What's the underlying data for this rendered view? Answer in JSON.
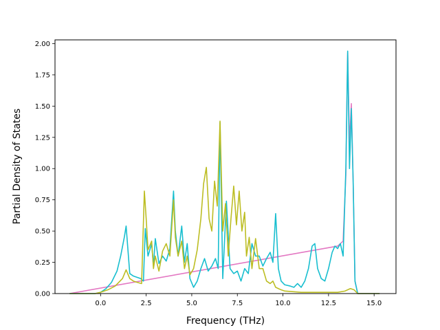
{
  "chart_data": {
    "type": "line",
    "title": "",
    "xlabel": "Frequency (THz)",
    "ylabel": "Partial Density of States",
    "xlim": [
      -2.5,
      16.2
    ],
    "ylim": [
      0.0,
      2.03
    ],
    "xticks": [
      0.0,
      2.5,
      5.0,
      7.5,
      10.0,
      12.5,
      15.0
    ],
    "xtick_labels": [
      "0.0",
      "2.5",
      "5.0",
      "7.5",
      "10.0",
      "12.5",
      "15.0"
    ],
    "yticks": [
      0.0,
      0.25,
      0.5,
      0.75,
      1.0,
      1.25,
      1.5,
      1.75,
      2.0
    ],
    "ytick_labels": [
      "0.00",
      "0.25",
      "0.50",
      "0.75",
      "1.00",
      "1.25",
      "1.50",
      "1.75",
      "2.00"
    ],
    "grid": false,
    "legend": "none",
    "series": [
      {
        "color": "#e377c2",
        "x": [
          -1.7,
          13.0,
          13.3,
          13.45,
          13.55,
          13.65,
          13.75,
          13.85,
          13.95,
          14.1,
          15.3
        ],
        "y": [
          0.0,
          0.38,
          0.42,
          0.95,
          1.93,
          1.2,
          1.52,
          0.9,
          0.1,
          0.0,
          0.0
        ]
      },
      {
        "color": "#17becf",
        "x": [
          -1.7,
          -0.3,
          0.0,
          0.3,
          0.6,
          0.9,
          1.1,
          1.3,
          1.4,
          1.6,
          1.8,
          2.0,
          2.2,
          2.35,
          2.45,
          2.6,
          2.8,
          2.9,
          3.0,
          3.2,
          3.4,
          3.6,
          3.8,
          4.0,
          4.1,
          4.25,
          4.45,
          4.6,
          4.75,
          4.9,
          5.1,
          5.3,
          5.5,
          5.7,
          5.9,
          6.1,
          6.3,
          6.45,
          6.55,
          6.7,
          6.9,
          7.1,
          7.3,
          7.5,
          7.7,
          7.9,
          8.1,
          8.3,
          8.5,
          8.7,
          8.9,
          9.1,
          9.3,
          9.45,
          9.6,
          9.75,
          9.9,
          10.1,
          10.4,
          10.6,
          10.8,
          11.0,
          11.2,
          11.4,
          11.6,
          11.75,
          11.9,
          12.1,
          12.3,
          12.5,
          12.7,
          12.85,
          13.0,
          13.15,
          13.3,
          13.45,
          13.55,
          13.65,
          13.75,
          13.85,
          13.95,
          14.1,
          14.5,
          15.3
        ],
        "y": [
          0.0,
          0.0,
          0.01,
          0.04,
          0.09,
          0.18,
          0.3,
          0.45,
          0.54,
          0.16,
          0.14,
          0.13,
          0.12,
          0.1,
          0.52,
          0.3,
          0.4,
          0.22,
          0.44,
          0.24,
          0.3,
          0.26,
          0.36,
          0.82,
          0.5,
          0.3,
          0.54,
          0.25,
          0.4,
          0.12,
          0.05,
          0.1,
          0.2,
          0.28,
          0.18,
          0.22,
          0.28,
          0.2,
          1.37,
          0.12,
          0.74,
          0.2,
          0.16,
          0.18,
          0.1,
          0.2,
          0.16,
          0.4,
          0.3,
          0.3,
          0.22,
          0.28,
          0.33,
          0.25,
          0.64,
          0.2,
          0.1,
          0.07,
          0.06,
          0.05,
          0.08,
          0.05,
          0.1,
          0.2,
          0.38,
          0.4,
          0.2,
          0.12,
          0.1,
          0.2,
          0.33,
          0.38,
          0.36,
          0.4,
          0.3,
          1.0,
          1.94,
          1.0,
          1.48,
          0.9,
          0.1,
          0.0,
          0.0,
          0.0
        ]
      },
      {
        "color": "#bcbd22",
        "x": [
          -1.7,
          -0.3,
          0.0,
          0.4,
          0.8,
          1.2,
          1.4,
          1.6,
          1.8,
          2.0,
          2.25,
          2.4,
          2.5,
          2.6,
          2.8,
          2.9,
          3.0,
          3.2,
          3.4,
          3.6,
          3.8,
          4.0,
          4.1,
          4.25,
          4.45,
          4.6,
          4.75,
          4.9,
          5.1,
          5.3,
          5.5,
          5.65,
          5.8,
          5.95,
          6.1,
          6.25,
          6.4,
          6.55,
          6.7,
          6.85,
          7.0,
          7.15,
          7.3,
          7.45,
          7.6,
          7.75,
          7.9,
          8.0,
          8.15,
          8.3,
          8.5,
          8.7,
          8.9,
          9.1,
          9.3,
          9.45,
          9.6,
          9.75,
          9.9,
          10.1,
          11.0,
          12.0,
          13.0,
          13.4,
          13.7,
          13.9,
          14.1,
          15.3
        ],
        "y": [
          0.0,
          0.0,
          0.01,
          0.03,
          0.06,
          0.12,
          0.19,
          0.12,
          0.1,
          0.09,
          0.08,
          0.82,
          0.6,
          0.35,
          0.42,
          0.2,
          0.3,
          0.18,
          0.34,
          0.4,
          0.3,
          0.75,
          0.45,
          0.3,
          0.42,
          0.2,
          0.3,
          0.15,
          0.2,
          0.35,
          0.6,
          0.88,
          1.01,
          0.6,
          0.5,
          0.9,
          0.7,
          1.38,
          0.5,
          0.72,
          0.3,
          0.6,
          0.86,
          0.55,
          0.82,
          0.5,
          0.65,
          0.3,
          0.45,
          0.2,
          0.44,
          0.2,
          0.2,
          0.1,
          0.08,
          0.1,
          0.05,
          0.04,
          0.03,
          0.02,
          0.01,
          0.01,
          0.01,
          0.02,
          0.04,
          0.03,
          0.0,
          0.0
        ]
      }
    ]
  }
}
